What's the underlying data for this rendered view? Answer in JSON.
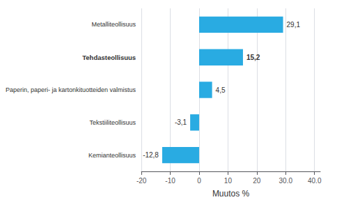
{
  "chart_data": {
    "type": "bar",
    "orientation": "horizontal",
    "xlabel": "Muutos %",
    "categories": [
      "Kemianteollisuus",
      "Tekstiiliteollisuus",
      "Paperin, paperi- ja kartonkituotteiden valmistus",
      "Tehdasteollisuus",
      "Metalliteollisuus"
    ],
    "values": [
      -12.8,
      -3.1,
      4.5,
      15.2,
      29.1
    ],
    "value_labels": [
      "-12,8",
      "-3,1",
      "4,5",
      "15,2",
      "29,1"
    ],
    "data_labels": true,
    "color": "#29abe2",
    "xlim": [
      -20,
      42
    ],
    "xticks": [
      -20,
      -10,
      0,
      10,
      20,
      {
        "value": 30,
        "label": "30.0"
      },
      {
        "value": 40,
        "label": "40.0"
      }
    ],
    "grid": true
  }
}
